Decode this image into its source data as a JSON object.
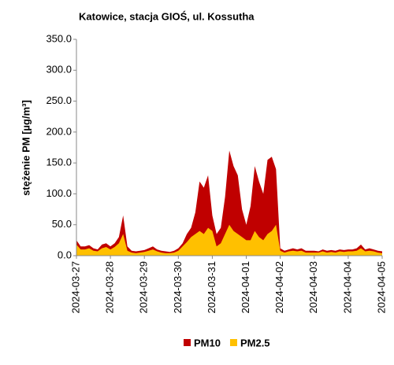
{
  "chart_data": {
    "type": "area",
    "title": "Katowice, stacja GIOŚ, ul. Kossutha",
    "y_label": "stężenie PM [µg/m³]",
    "categories": [
      "2024-03-27",
      null,
      null,
      null,
      null,
      null,
      null,
      null,
      "2024-03-28",
      null,
      null,
      null,
      null,
      null,
      null,
      null,
      "2024-03-29",
      null,
      null,
      null,
      null,
      null,
      null,
      null,
      "2024-03-30",
      null,
      null,
      null,
      null,
      null,
      null,
      null,
      "2024-03-31",
      null,
      null,
      null,
      null,
      null,
      null,
      null,
      "2024-04-01",
      null,
      null,
      null,
      null,
      null,
      null,
      null,
      "2024-04-02",
      null,
      null,
      null,
      null,
      null,
      null,
      null,
      "2024-04-03",
      null,
      null,
      null,
      null,
      null,
      null,
      null,
      "2024-04-04",
      null,
      null,
      null,
      null,
      null,
      null,
      null,
      "2024-04-05"
    ],
    "series": [
      {
        "name": "PM10",
        "color": "#c00000",
        "values": [
          25,
          15,
          15,
          17,
          12,
          10,
          18,
          20,
          15,
          20,
          30,
          65,
          15,
          8,
          7,
          8,
          9,
          12,
          15,
          10,
          8,
          7,
          6,
          8,
          12,
          20,
          35,
          45,
          70,
          120,
          110,
          130,
          65,
          35,
          45,
          95,
          170,
          145,
          130,
          75,
          50,
          80,
          145,
          120,
          100,
          155,
          160,
          140,
          12,
          8,
          10,
          12,
          10,
          12,
          8,
          8,
          8,
          7,
          10,
          8,
          9,
          8,
          10,
          9,
          10,
          10,
          12,
          18,
          10,
          12,
          10,
          8,
          7
        ]
      },
      {
        "name": "PM2.5",
        "color": "#ffc000",
        "values": [
          18,
          10,
          10,
          12,
          8,
          7,
          12,
          14,
          10,
          14,
          20,
          35,
          8,
          5,
          4,
          5,
          6,
          8,
          10,
          7,
          5,
          4,
          4,
          5,
          8,
          15,
          22,
          30,
          35,
          40,
          35,
          45,
          40,
          15,
          20,
          35,
          50,
          40,
          35,
          30,
          25,
          25,
          40,
          30,
          25,
          35,
          40,
          50,
          8,
          5,
          7,
          8,
          7,
          8,
          5,
          5,
          5,
          5,
          7,
          5,
          6,
          5,
          7,
          6,
          7,
          7,
          8,
          12,
          7,
          8,
          7,
          5,
          4
        ]
      }
    ],
    "ylim": [
      0,
      350
    ],
    "yticks": [
      {
        "value": 0,
        "label": "0.0"
      },
      {
        "value": 50,
        "label": "50.0"
      },
      {
        "value": 100,
        "label": "100.0"
      },
      {
        "value": 150,
        "label": "150.0"
      },
      {
        "value": 200,
        "label": "200.0"
      },
      {
        "value": 250,
        "label": "250.0"
      },
      {
        "value": 300,
        "label": "300.0"
      },
      {
        "value": 350,
        "label": "350.0"
      }
    ],
    "legend": "bottom"
  }
}
